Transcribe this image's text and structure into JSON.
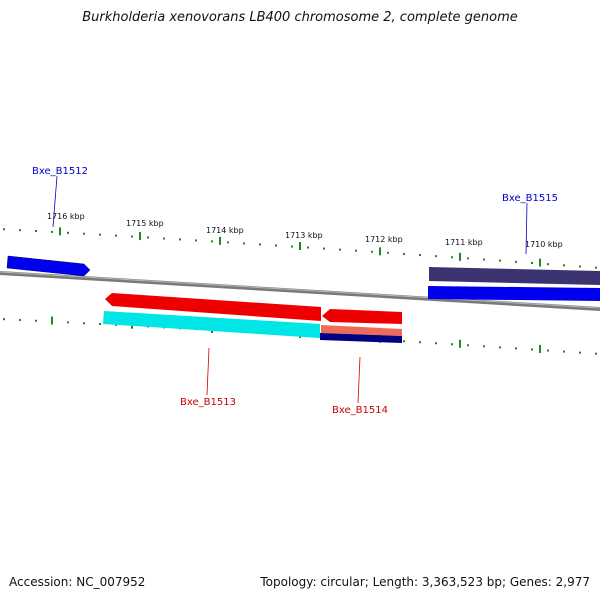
{
  "title": "Burkholderia xenovorans LB400 chromosome 2, complete genome",
  "footer": {
    "accession": "Accession: NC_007952",
    "stats": "Topology: circular; Length: 3,363,523 bp; Genes: 2,977"
  },
  "ticks": [
    "1716 kbp",
    "1715 kbp",
    "1714 kbp",
    "1713 kbp",
    "1712 kbp",
    "1711 kbp",
    "1710 kbp"
  ],
  "genes": [
    {
      "label": "Bxe_B1512",
      "color": "#0000cc"
    },
    {
      "label": "Bxe_B1513",
      "color": "#cc0000"
    },
    {
      "label": "Bxe_B1514",
      "color": "#cc0000"
    },
    {
      "label": "Bxe_B1515",
      "color": "#0000cc"
    }
  ],
  "colors": {
    "backbone": "#888888",
    "tick": "#1e8a1e",
    "cds_plus": "#0000ee",
    "cds_minus": "#ee0000",
    "gene_cyan": "#00e5e5",
    "gene_navy": "#000080",
    "gene_slate": "#3c3470",
    "gene_salmon": "#f06a5a"
  }
}
